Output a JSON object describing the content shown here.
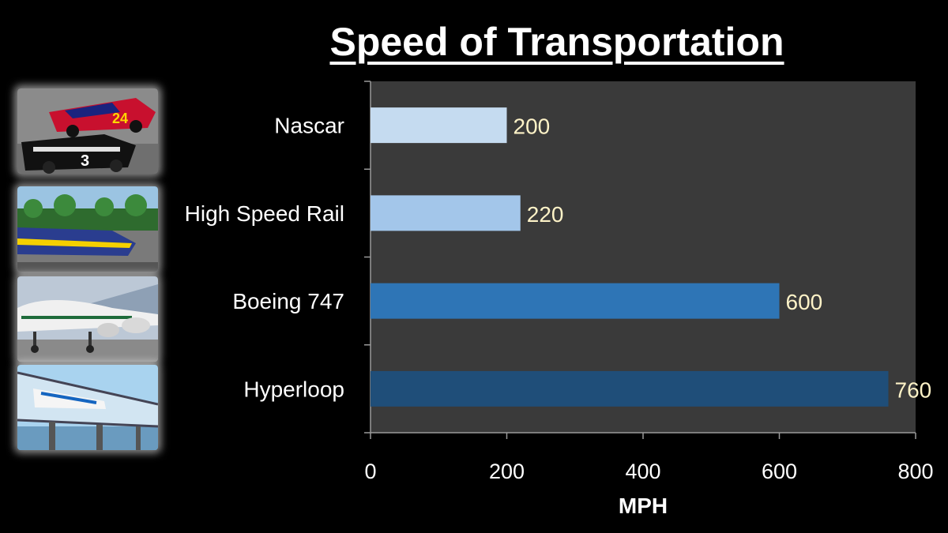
{
  "title": "Speed of Transportation",
  "thumbnails": [
    {
      "icon": "race-cars-photo"
    },
    {
      "icon": "high-speed-train-photo"
    },
    {
      "icon": "boeing-747-photo"
    },
    {
      "icon": "hyperloop-tube-photo"
    }
  ],
  "chart_data": {
    "type": "bar",
    "orientation": "horizontal",
    "categories": [
      "Nascar",
      "High Speed Rail",
      "Boeing 747",
      "Hyperloop"
    ],
    "values": [
      200,
      220,
      600,
      760
    ],
    "data_labels": [
      "200",
      "220",
      "600",
      "760"
    ],
    "bar_colors": [
      "#c5dbf0",
      "#a3c6ea",
      "#2e75b6",
      "#1f4e79"
    ],
    "xlabel": "MPH",
    "ylabel": "",
    "xlim": [
      0,
      800
    ],
    "xticks": [
      "0",
      "200",
      "400",
      "600",
      "800"
    ],
    "grid": false,
    "plot_background": "#3a3a3a",
    "label_color": "#fdf2c7"
  }
}
